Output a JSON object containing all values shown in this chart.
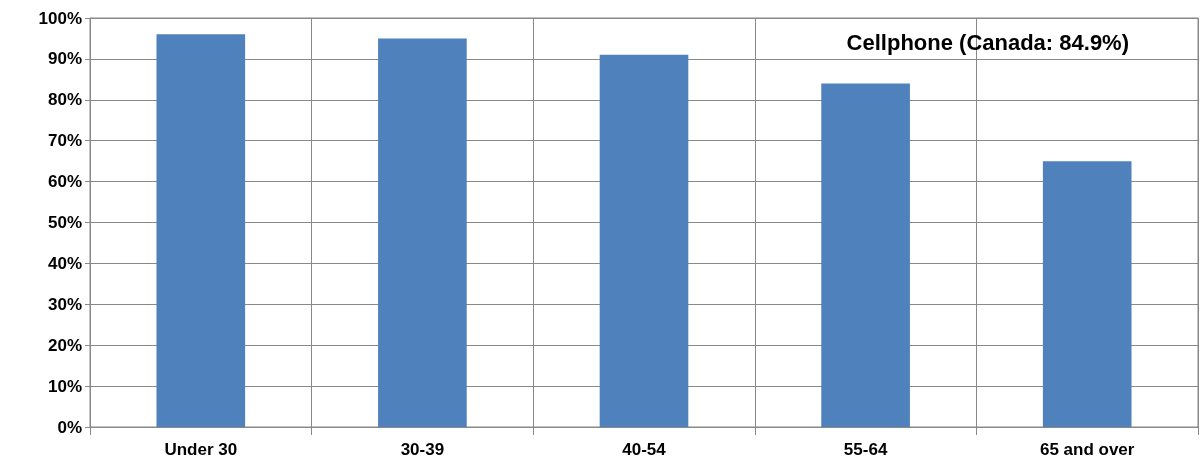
{
  "chart_data": {
    "type": "bar",
    "title": "Cellphone (Canada: 84.9%)",
    "categories": [
      "Under 30",
      "30-39",
      "40-54",
      "55-64",
      "65 and over"
    ],
    "values": [
      96,
      95,
      91,
      84,
      65
    ],
    "color": "#4f81bd",
    "ylim": [
      0,
      100
    ],
    "yticks": [
      {
        "value": 0,
        "label": "0%"
      },
      {
        "value": 10,
        "label": "10%"
      },
      {
        "value": 20,
        "label": "20%"
      },
      {
        "value": 30,
        "label": "30%"
      },
      {
        "value": 40,
        "label": "40%"
      },
      {
        "value": 50,
        "label": "50%"
      },
      {
        "value": 60,
        "label": "60%"
      },
      {
        "value": 70,
        "label": "70%"
      },
      {
        "value": 80,
        "label": "80%"
      },
      {
        "value": 90,
        "label": "90%"
      },
      {
        "value": 100,
        "label": "100%"
      }
    ],
    "grid": true
  }
}
